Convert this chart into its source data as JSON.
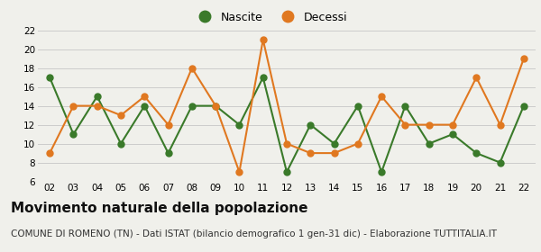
{
  "years": [
    "02",
    "03",
    "04",
    "05",
    "06",
    "07",
    "08",
    "09",
    "10",
    "11",
    "12",
    "13",
    "14",
    "15",
    "16",
    "17",
    "18",
    "19",
    "20",
    "21",
    "22"
  ],
  "nascite": [
    17,
    11,
    15,
    10,
    14,
    9,
    14,
    14,
    12,
    17,
    7,
    12,
    10,
    14,
    7,
    14,
    10,
    11,
    9,
    8,
    14
  ],
  "decessi": [
    9,
    14,
    14,
    13,
    15,
    12,
    18,
    14,
    7,
    21,
    10,
    9,
    9,
    10,
    15,
    12,
    12,
    12,
    17,
    12,
    19
  ],
  "nascite_color": "#3a7a2a",
  "decessi_color": "#e07820",
  "background_color": "#f0f0eb",
  "grid_color": "#cccccc",
  "ylim": [
    6,
    22
  ],
  "yticks": [
    6,
    8,
    10,
    12,
    14,
    16,
    18,
    20,
    22
  ],
  "title": "Movimento naturale della popolazione",
  "subtitle": "COMUNE DI ROMENO (TN) - Dati ISTAT (bilancio demografico 1 gen-31 dic) - Elaborazione TUTTITALIA.IT",
  "legend_nascite": "Nascite",
  "legend_decessi": "Decessi",
  "title_fontsize": 11,
  "subtitle_fontsize": 7.5,
  "marker_size": 5,
  "linewidth": 1.5
}
